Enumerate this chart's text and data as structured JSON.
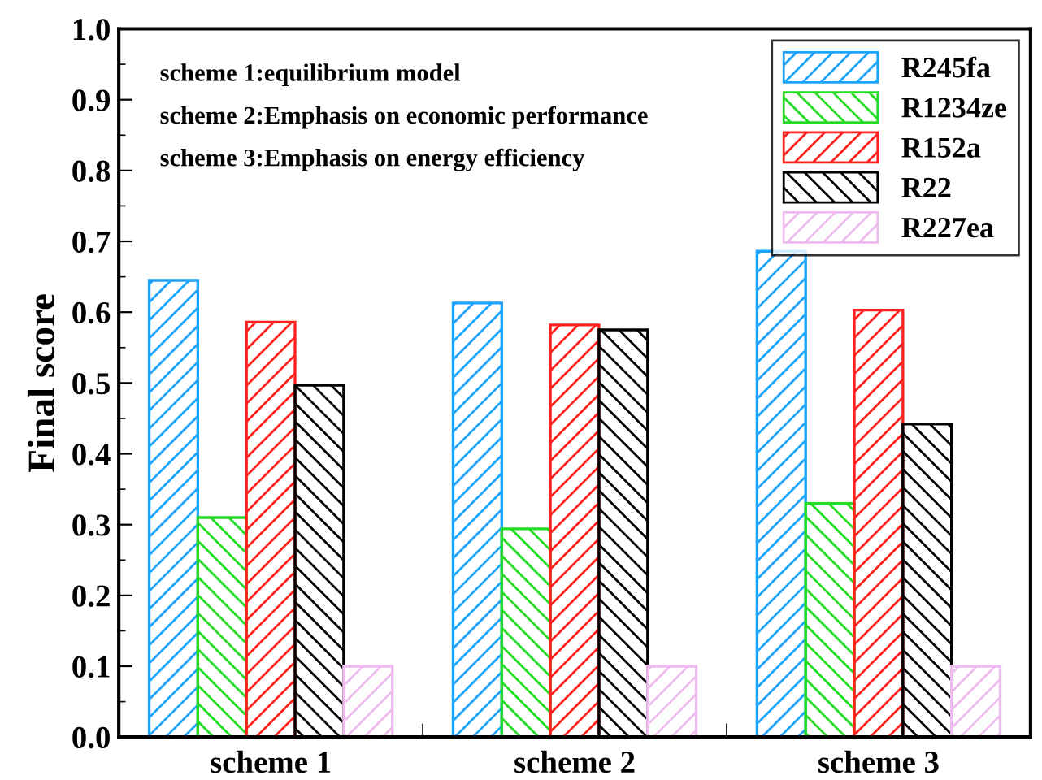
{
  "chart_data": {
    "type": "bar",
    "ylabel": "Final score",
    "categories": [
      "scheme 1",
      "scheme 2",
      "scheme 3"
    ],
    "series": [
      {
        "name": "R245fa",
        "color": "#1aa3ff",
        "values": [
          0.645,
          0.613,
          0.686
        ]
      },
      {
        "name": "R1234ze",
        "color": "#22dd22",
        "values": [
          0.31,
          0.294,
          0.33
        ]
      },
      {
        "name": "R152a",
        "color": "#ff2020",
        "values": [
          0.586,
          0.582,
          0.603
        ]
      },
      {
        "name": "R22",
        "color": "#000000",
        "values": [
          0.497,
          0.575,
          0.442
        ]
      },
      {
        "name": "R227ea",
        "color": "#eebbee",
        "values": [
          0.1,
          0.1,
          0.1
        ]
      }
    ],
    "ylim": [
      0,
      1.0
    ],
    "yticks": [
      {
        "value": 0,
        "label": "0.0"
      },
      0.1,
      0.2,
      0.3,
      0.4,
      0.5,
      0.6,
      0.7,
      0.8,
      0.9,
      {
        "value": 1,
        "label": "1.0"
      }
    ],
    "annotations": [
      "scheme 1:equilibrium model",
      "scheme 2:Emphasis on economic performance",
      "scheme 3:Emphasis on energy efficiency"
    ],
    "legend": "top right",
    "grid": false
  }
}
